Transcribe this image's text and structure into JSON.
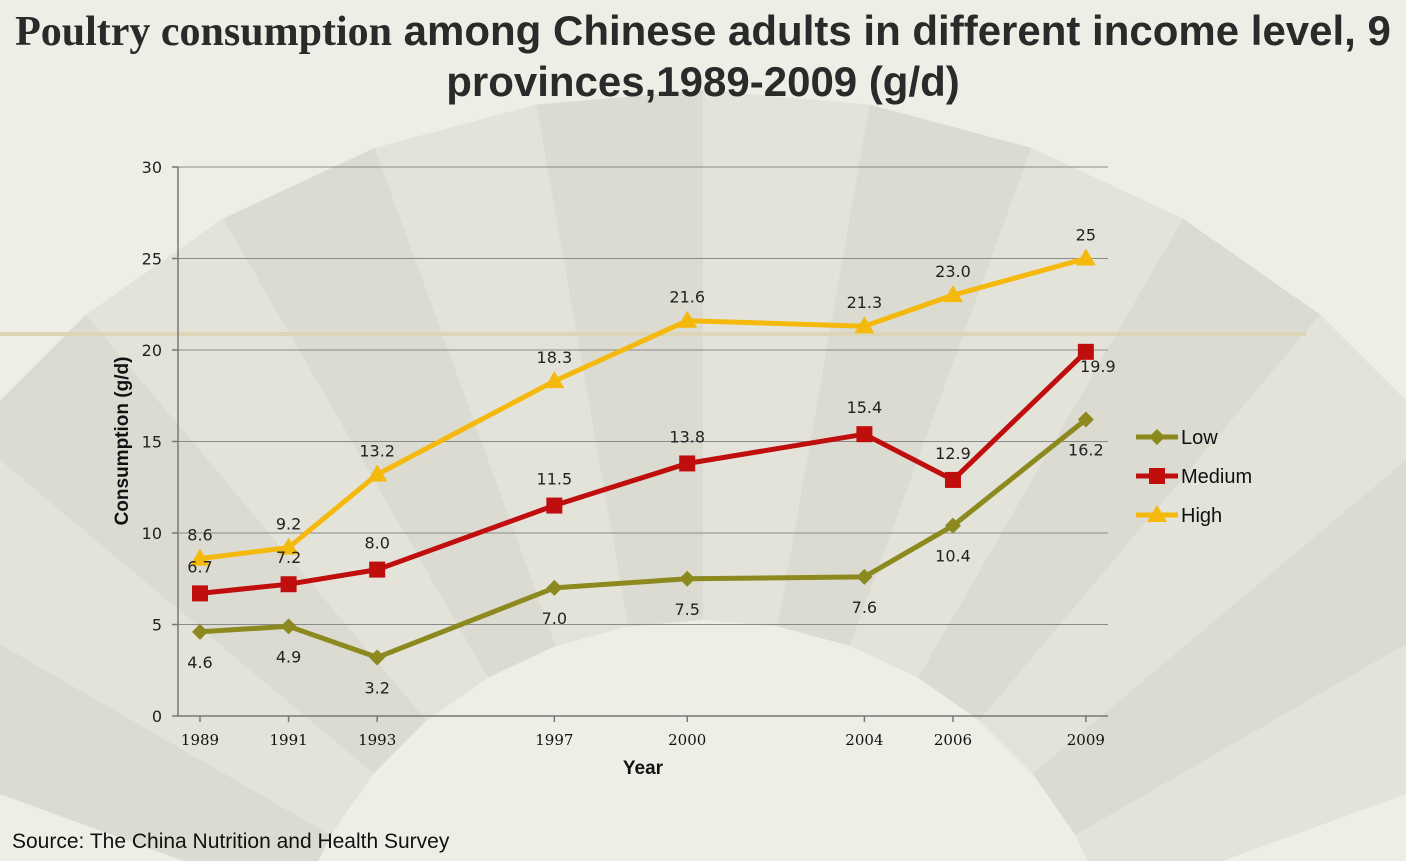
{
  "title_serif": "Poultry consumption",
  "title_sans": " among Chinese adults in different income level, 9 provinces,1989-2009 (g/d)",
  "source": "Source: The China Nutrition and Health Survey",
  "chart_data": {
    "type": "line",
    "xlabel": "Year",
    "ylabel": "Consumption (g/d)",
    "x": [
      1989,
      1991,
      1993,
      1997,
      2000,
      2004,
      2006,
      2009
    ],
    "ylim": [
      0,
      30
    ],
    "yticks": [
      0,
      5,
      10,
      15,
      20,
      25,
      30
    ],
    "grid": true,
    "legend_position": "right",
    "series": [
      {
        "name": "Low",
        "color": "#8c8a1f",
        "marker": "diamond",
        "values": [
          4.6,
          4.9,
          3.2,
          7.0,
          7.5,
          7.6,
          10.4,
          16.2
        ],
        "labels": [
          "4.6",
          "4.9",
          "3.2",
          "7.0",
          "7.5",
          "7.6",
          "10.4",
          "16.2"
        ]
      },
      {
        "name": "Medium",
        "color": "#c00d0d",
        "marker": "square",
        "values": [
          6.7,
          7.2,
          8.0,
          11.5,
          13.8,
          15.4,
          12.9,
          19.9
        ],
        "labels": [
          "6.7",
          "7.2",
          "8.0",
          "11.5",
          "13.8",
          "15.4",
          "12.9",
          "19.9"
        ]
      },
      {
        "name": "High",
        "color": "#f5b90d",
        "marker": "triangle",
        "values": [
          8.6,
          9.2,
          13.2,
          18.3,
          21.6,
          21.3,
          23.0,
          25
        ],
        "labels": [
          "8.6",
          "9.2",
          "13.2",
          "18.3",
          "21.6",
          "21.3",
          "23.0",
          "25"
        ]
      }
    ]
  }
}
